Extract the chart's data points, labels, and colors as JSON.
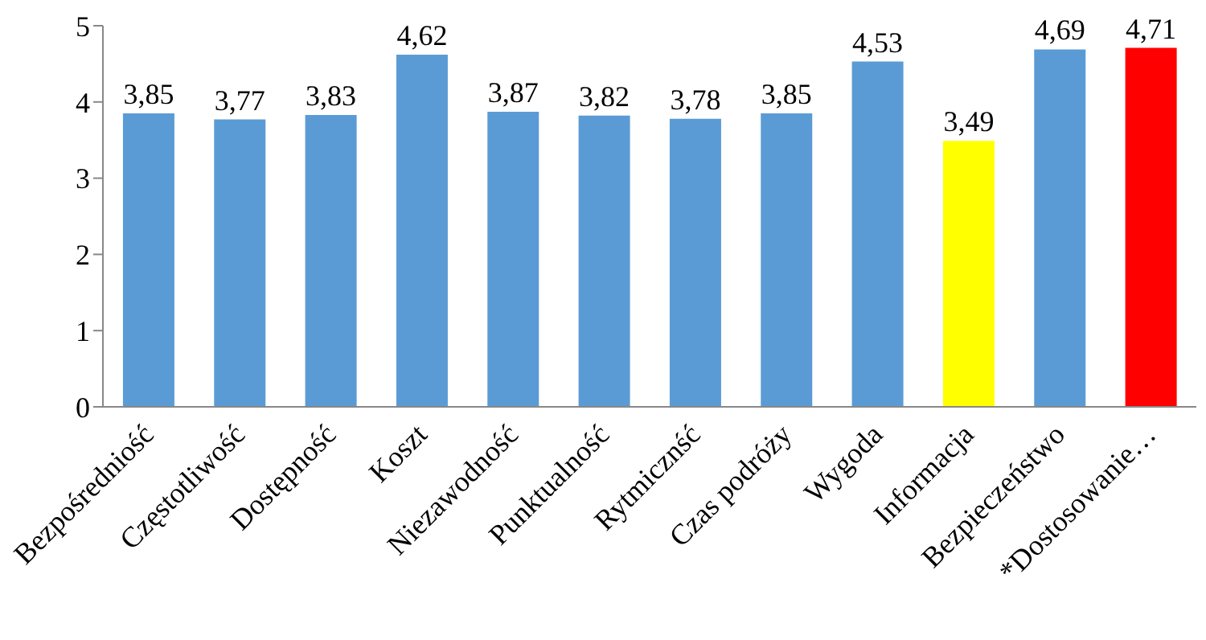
{
  "chart_data": {
    "type": "bar",
    "categories": [
      "Bezpośredniość",
      "Częstotliwość",
      "Dostępność",
      "Koszt",
      "Niezawodność",
      "Punktualność",
      "Rytmicznść",
      "Czas podróży",
      "Wygoda",
      "Informacja",
      "Bezpieczeństwo",
      "*Dostosowanie…"
    ],
    "values": [
      3.85,
      3.77,
      3.83,
      4.62,
      3.87,
      3.82,
      3.78,
      3.85,
      4.53,
      3.49,
      4.69,
      4.71
    ],
    "colors": [
      "#5b9bd5",
      "#5b9bd5",
      "#5b9bd5",
      "#5b9bd5",
      "#5b9bd5",
      "#5b9bd5",
      "#5b9bd5",
      "#5b9bd5",
      "#5b9bd5",
      "#ffff00",
      "#5b9bd5",
      "#ff0000"
    ],
    "value_labels": [
      "3,85",
      "3,77",
      "3,83",
      "4,62",
      "3,87",
      "3,82",
      "3,78",
      "3,85",
      "4,53",
      "3,49",
      "4,69",
      "4,71"
    ],
    "ylim": [
      0,
      5
    ],
    "yticks": [
      0,
      1,
      2,
      3,
      4,
      5
    ],
    "grid": false
  }
}
